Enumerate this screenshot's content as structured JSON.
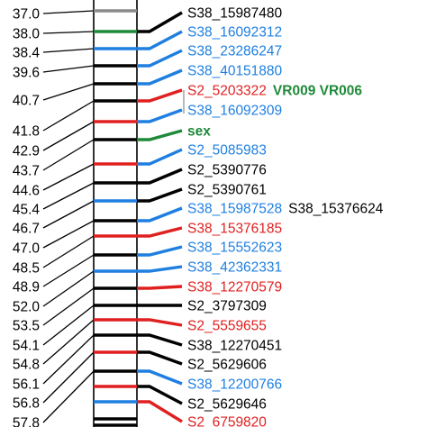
{
  "colors": {
    "black": "#000000",
    "blue": "#1f7fe0",
    "red": "#e02020",
    "green": "#1f8a3a",
    "gray": "#8a8a8a",
    "chromosome_fill": "#ffffff"
  },
  "positions": [
    {
      "label": "37.0"
    },
    {
      "label": "38.0"
    },
    {
      "label": "38.4"
    },
    {
      "label": "39.6"
    },
    {
      "label": "40.7"
    },
    {
      "label": "41.8"
    },
    {
      "label": "42.9"
    },
    {
      "label": "43.7"
    },
    {
      "label": "44.6"
    },
    {
      "label": "45.4"
    },
    {
      "label": "46.7"
    },
    {
      "label": "47.0"
    },
    {
      "label": "48.5"
    },
    {
      "label": "48.9"
    },
    {
      "label": "52.0"
    },
    {
      "label": "53.5"
    },
    {
      "label": "54.1"
    },
    {
      "label": "54.8"
    },
    {
      "label": "56.1"
    },
    {
      "label": "56.8"
    },
    {
      "label": "57.8"
    }
  ],
  "markers": [
    {
      "label": "S38_15987480",
      "color": "black",
      "bold": false
    },
    {
      "label": "S38_16092312",
      "color": "blue",
      "bold": false
    },
    {
      "label": "S38_23286247",
      "color": "blue",
      "bold": false
    },
    {
      "label": "S38_40151880",
      "color": "blue",
      "bold": false
    },
    {
      "label": "S2_5203322",
      "color": "red",
      "bold": false,
      "extra": "VR009 VR006",
      "extra_color": "green"
    },
    {
      "label": "S38_16092309",
      "color": "blue",
      "bold": false
    },
    {
      "label": "sex",
      "color": "green",
      "bold": true
    },
    {
      "label": "S2_5085983",
      "color": "blue",
      "bold": false
    },
    {
      "label": "S2_5390776",
      "color": "black",
      "bold": false
    },
    {
      "label": "S2_5390761",
      "color": "black",
      "bold": false
    },
    {
      "label": "S38_15987528",
      "color": "blue",
      "bold": false,
      "extra": "S38_15376624",
      "extra_color": "black"
    },
    {
      "label": "S38_15376185",
      "color": "red",
      "bold": false
    },
    {
      "label": "S38_15552623",
      "color": "blue",
      "bold": false
    },
    {
      "label": "S38_42362331",
      "color": "blue",
      "bold": false
    },
    {
      "label": "S38_12270579",
      "color": "red",
      "bold": false
    },
    {
      "label": "S2_3797309",
      "color": "black",
      "bold": false
    },
    {
      "label": "S2_5559655",
      "color": "red",
      "bold": false
    },
    {
      "label": "S38_12270451",
      "color": "black",
      "bold": false
    },
    {
      "label": "S2_5629606",
      "color": "black",
      "bold": false
    },
    {
      "label": "S38_12200766",
      "color": "blue",
      "bold": false
    },
    {
      "label": "S2_5629646",
      "color": "black",
      "bold": false
    },
    {
      "label": "S2_6759820",
      "color": "red",
      "bold": false
    }
  ],
  "bands": [
    {
      "color": "gray"
    },
    {
      "color": "green"
    },
    {
      "color": "blue"
    },
    {
      "color": "black"
    },
    {
      "color": "black"
    },
    {
      "color": "black"
    },
    {
      "color": "red"
    },
    {
      "color": "black"
    },
    {
      "color": "red"
    },
    {
      "color": "black"
    },
    {
      "color": "blue"
    },
    {
      "color": "black"
    },
    {
      "color": "red"
    },
    {
      "color": "black"
    },
    {
      "color": "blue"
    },
    {
      "color": "black"
    },
    {
      "color": "black"
    },
    {
      "color": "red"
    },
    {
      "color": "black"
    },
    {
      "color": "red"
    },
    {
      "color": "black"
    },
    {
      "color": "red"
    },
    {
      "color": "blue"
    },
    {
      "color": "black"
    },
    {
      "color": "black"
    }
  ]
}
